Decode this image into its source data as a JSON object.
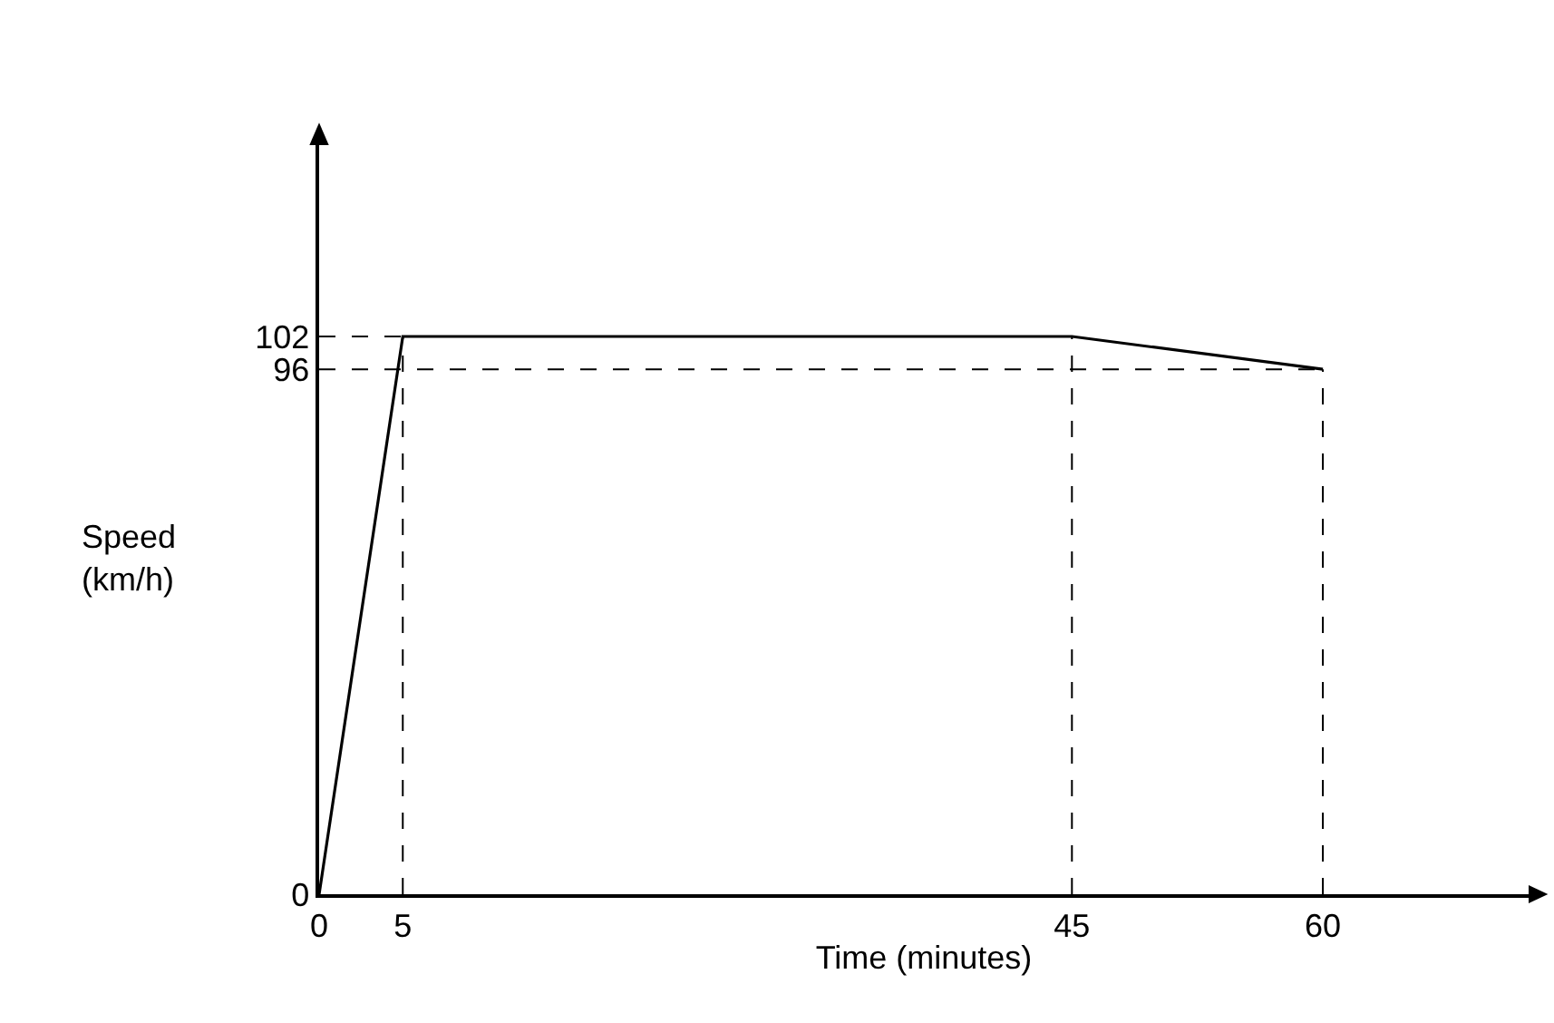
{
  "chart_data": {
    "type": "line",
    "xlabel": "Time (minutes)",
    "ylabel": "Speed\n(km/h)",
    "x": [
      0,
      5,
      45,
      60
    ],
    "series": [
      {
        "color": "#000000",
        "x": [
          0,
          5
        ],
        "values": [
          102,
          102
        ],
        "line_style": "dashed"
      },
      {
        "color": "#000000",
        "x": [
          0,
          60
        ],
        "values": [
          96,
          96
        ],
        "line_style": "dashed"
      },
      {
        "color": "#000000",
        "x": [
          5,
          5
        ],
        "values": [
          0,
          102
        ],
        "line_style": "dashed"
      },
      {
        "color": "#000000",
        "x": [
          45,
          45
        ],
        "values": [
          0,
          102
        ],
        "line_style": "dashed"
      },
      {
        "color": "#000000",
        "x": [
          60,
          60
        ],
        "values": [
          0,
          96
        ],
        "line_style": "dashed"
      },
      {
        "color": "#000000",
        "values": [
          0,
          102,
          102,
          96
        ]
      }
    ],
    "xlim": [
      0,
      72.3
    ],
    "ylim": [
      0,
      137
    ],
    "xticks": [
      0,
      5,
      45,
      60
    ],
    "yticks": [
      0,
      96,
      102
    ],
    "marker": "none",
    "line_style": "solid"
  }
}
